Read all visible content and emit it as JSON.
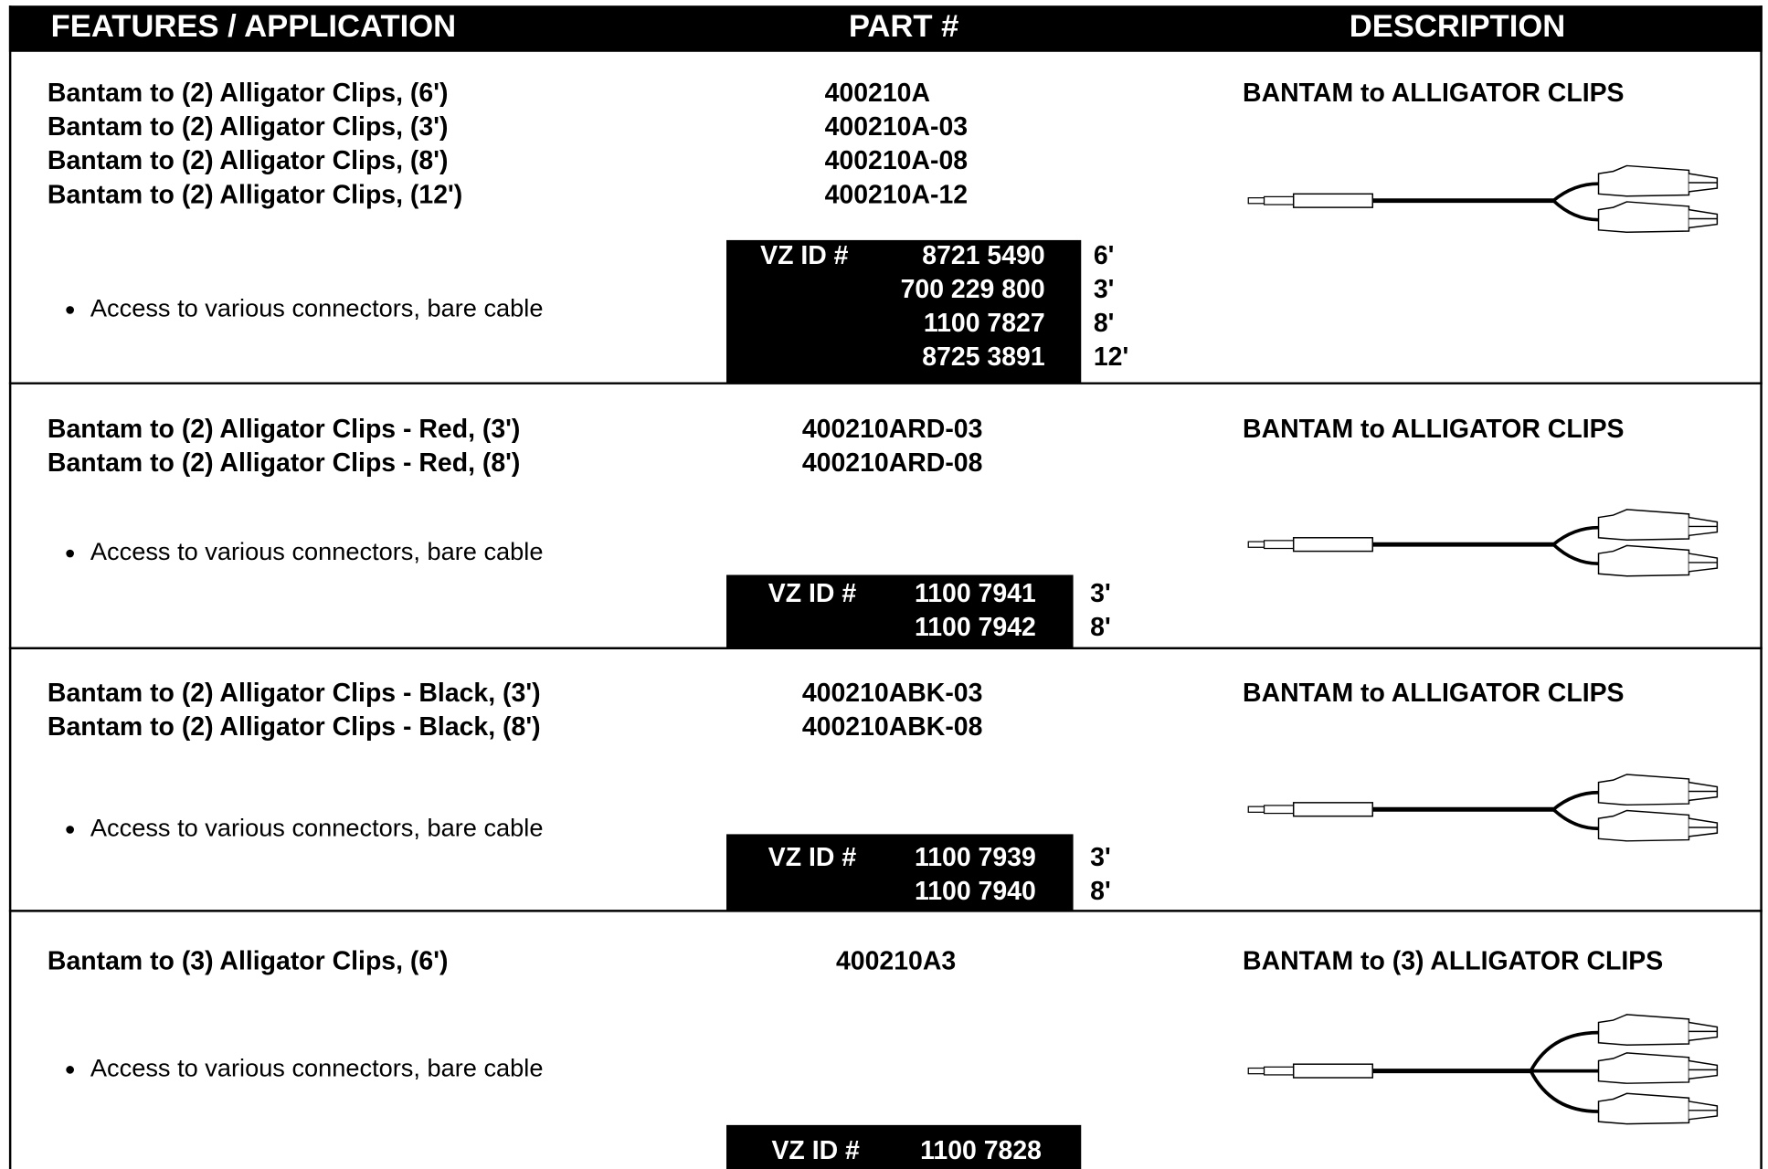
{
  "header": {
    "features": "FEATURES / APPLICATION",
    "part": "PART #",
    "description": "DESCRIPTION"
  },
  "rows": [
    {
      "items": [
        {
          "feature": "Bantam to (2) Alligator Clips, (6')",
          "part": "400210A"
        },
        {
          "feature": "Bantam to (2) Alligator Clips, (3')",
          "part": "400210A-03"
        },
        {
          "feature": "Bantam to (2) Alligator Clips, (8')",
          "part": "400210A-08"
        },
        {
          "feature": "Bantam to (2) Alligator Clips, (12')",
          "part": "400210A-12"
        }
      ],
      "bullet": "Access to various connectors, bare cable",
      "vz_label": "VZ ID #",
      "vz_ids": [
        {
          "id": "8721 5490",
          "length": "6'"
        },
        {
          "id": "700 229 800",
          "length": "3'"
        },
        {
          "id": "1100 7827",
          "length": "8'"
        },
        {
          "id": "8725 3891",
          "length": "12'"
        }
      ],
      "description": "BANTAM to ALLIGATOR CLIPS"
    },
    {
      "items": [
        {
          "feature": "Bantam to (2) Alligator Clips - Red, (3')",
          "part": "400210ARD-03"
        },
        {
          "feature": "Bantam to (2) Alligator Clips - Red, (8')",
          "part": "400210ARD-08"
        }
      ],
      "bullet": "Access to various connectors, bare cable",
      "vz_label": "VZ ID #",
      "vz_ids": [
        {
          "id": "1100 7941",
          "length": "3'"
        },
        {
          "id": "1100 7942",
          "length": "8'"
        }
      ],
      "description": "BANTAM to ALLIGATOR CLIPS"
    },
    {
      "items": [
        {
          "feature": "Bantam to (2) Alligator Clips - Black, (3')",
          "part": "400210ABK-03"
        },
        {
          "feature": "Bantam to (2) Alligator Clips - Black, (8')",
          "part": "400210ABK-08"
        }
      ],
      "bullet": "Access to various connectors, bare cable",
      "vz_label": "VZ ID #",
      "vz_ids": [
        {
          "id": "1100 7939",
          "length": "3'"
        },
        {
          "id": "1100 7940",
          "length": "8'"
        }
      ],
      "description": "BANTAM to ALLIGATOR CLIPS"
    },
    {
      "items": [
        {
          "feature": "Bantam to (3) Alligator Clips, (6')",
          "part": "400210A3"
        }
      ],
      "bullet": "Access to various connectors, bare cable",
      "vz_label": "VZ ID #",
      "vz_ids": [
        {
          "id": "1100 7828"
        }
      ],
      "description": "BANTAM to (3) ALLIGATOR CLIPS"
    }
  ]
}
